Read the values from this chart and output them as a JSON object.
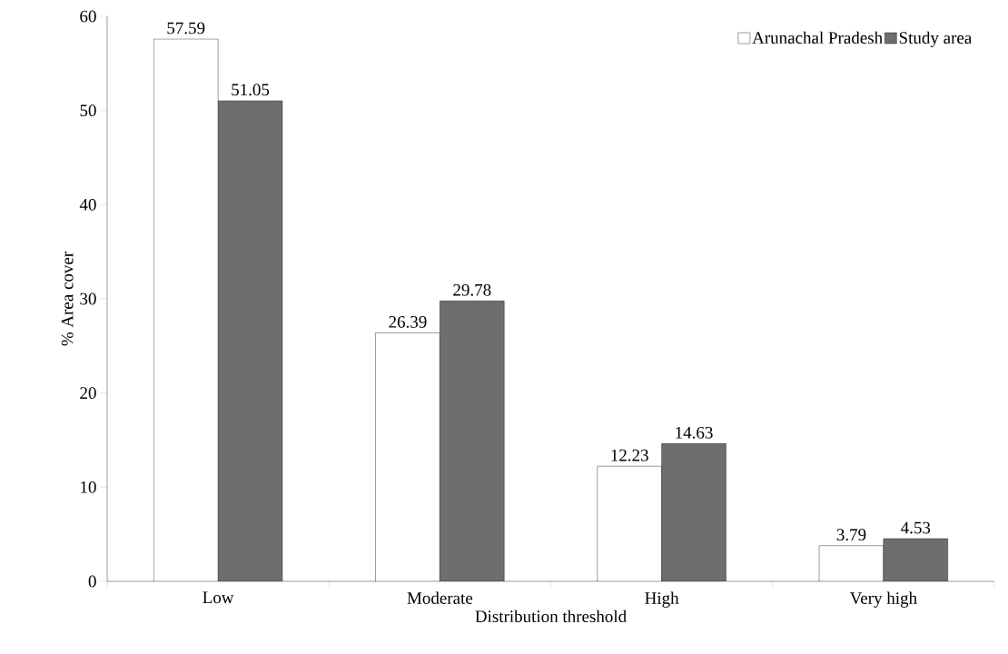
{
  "chart_data": {
    "type": "bar",
    "xlabel": "Distribution threshold",
    "ylabel": "% Area cover",
    "categories": [
      "Low",
      "Moderate",
      "High",
      "Very high"
    ],
    "series": [
      {
        "name": "Arunachal Pradesh",
        "color": "#ffffff",
        "values": [
          57.59,
          26.39,
          12.23,
          3.79
        ]
      },
      {
        "name": "Study area",
        "color": "#6e6e6e",
        "values": [
          51.05,
          29.78,
          14.63,
          4.53
        ]
      }
    ],
    "ylim": [
      0,
      60
    ],
    "yticks": [
      0,
      10,
      20,
      30,
      40,
      50,
      60
    ],
    "grid": false,
    "legend": "top right",
    "data_labels": true
  }
}
